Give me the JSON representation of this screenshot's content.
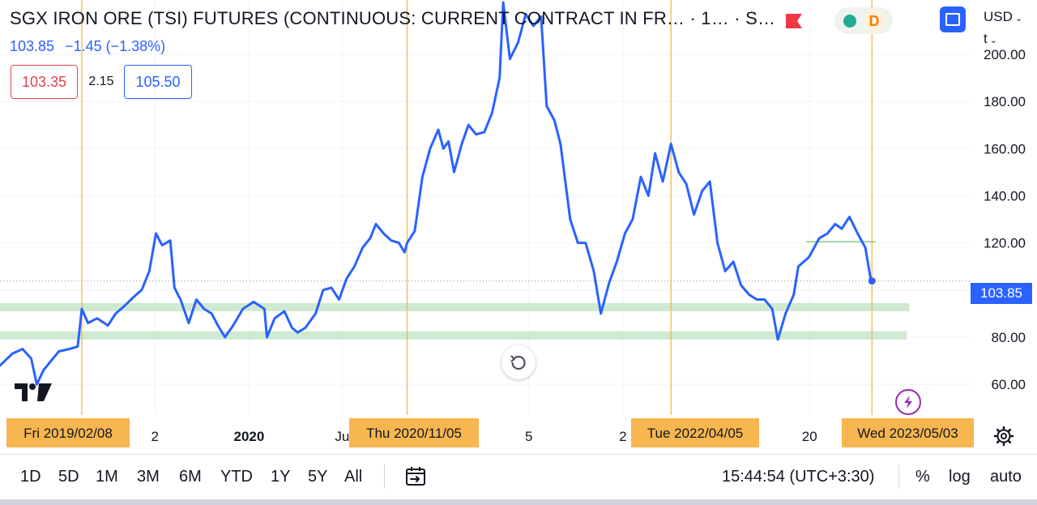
{
  "header": {
    "title": "SGX IRON ORE (TSI) FUTURES (CONTINUOUS: CURRENT CONTRACT IN FR…  · 1…  · S…",
    "last_price": "103.85",
    "change": "−1.45 (−1.38%)",
    "bid": "103.35",
    "spread": "2.15",
    "ask": "105.50",
    "status_letter": "D",
    "currency": "USD",
    "unit": "t"
  },
  "colors": {
    "line": "#2962ff",
    "support_zone": "#c8e6c9",
    "event_line": "#f0b94a",
    "date_chip": "#f7b64f",
    "bid": "#e0454b",
    "ask": "#2962ff",
    "market_open": "#22ab94",
    "delayed": "#f57c00"
  },
  "chart_data": {
    "type": "line",
    "ylim": [
      47,
      223
    ],
    "xlim": [
      "2018-09-01",
      "2023-11-15"
    ],
    "y_ticks": [
      "60.00",
      "80.00",
      "100.00",
      "120.00",
      "140.00",
      "160.00",
      "180.00",
      "200.00"
    ],
    "x_ticks": [
      {
        "label": "2",
        "date": "2019-07-01"
      },
      {
        "label": "2020",
        "date": "2020-01-01"
      },
      {
        "label": "Ju",
        "date": "2020-07-01"
      },
      {
        "label": "5",
        "date": "2021-07-01"
      },
      {
        "label": "2",
        "date": "2022-01-01"
      },
      {
        "label": "20",
        "date": "2023-01-01"
      }
    ],
    "current_price_label": "103.85",
    "current_price": 103.85,
    "event_dates": [
      {
        "label": "Fri 2019/02/08",
        "date": "2019-02-08"
      },
      {
        "label": "Thu 2020/11/05",
        "date": "2020-11-05"
      },
      {
        "label": "Tue 2022/04/05",
        "date": "2022-04-05"
      },
      {
        "label": "Wed 2023/05/03",
        "date": "2023-05-03"
      }
    ],
    "zones": [
      {
        "from": "2018-09-01",
        "to": "2023-07-15",
        "low": 91,
        "high": 94.5
      },
      {
        "from": "2018-09-01",
        "to": "2023-07-10",
        "low": 79,
        "high": 82.5
      }
    ],
    "level_lines": [
      {
        "from": "2022-12-25",
        "to": "2023-05-10",
        "value": 120.5
      }
    ],
    "series": [
      {
        "values": [
          {
            "x": "2018-09-01",
            "y": 68
          },
          {
            "x": "2018-09-25",
            "y": 73
          },
          {
            "x": "2018-10-15",
            "y": 75
          },
          {
            "x": "2018-11-01",
            "y": 71
          },
          {
            "x": "2018-11-12",
            "y": 60
          },
          {
            "x": "2018-11-25",
            "y": 66
          },
          {
            "x": "2018-12-10",
            "y": 70
          },
          {
            "x": "2018-12-25",
            "y": 74
          },
          {
            "x": "2019-01-15",
            "y": 75
          },
          {
            "x": "2019-01-31",
            "y": 76
          },
          {
            "x": "2019-02-08",
            "y": 92
          },
          {
            "x": "2019-02-20",
            "y": 86
          },
          {
            "x": "2019-03-10",
            "y": 88
          },
          {
            "x": "2019-03-31",
            "y": 85
          },
          {
            "x": "2019-04-15",
            "y": 90
          },
          {
            "x": "2019-05-01",
            "y": 93
          },
          {
            "x": "2019-05-20",
            "y": 97
          },
          {
            "x": "2019-06-05",
            "y": 100
          },
          {
            "x": "2019-06-20",
            "y": 108
          },
          {
            "x": "2019-07-03",
            "y": 124
          },
          {
            "x": "2019-07-15",
            "y": 119
          },
          {
            "x": "2019-07-31",
            "y": 121
          },
          {
            "x": "2019-08-08",
            "y": 101
          },
          {
            "x": "2019-08-20",
            "y": 96
          },
          {
            "x": "2019-09-05",
            "y": 86
          },
          {
            "x": "2019-09-20",
            "y": 96
          },
          {
            "x": "2019-10-05",
            "y": 92
          },
          {
            "x": "2019-10-20",
            "y": 90
          },
          {
            "x": "2019-11-01",
            "y": 85
          },
          {
            "x": "2019-11-15",
            "y": 80
          },
          {
            "x": "2019-12-01",
            "y": 85
          },
          {
            "x": "2019-12-20",
            "y": 92
          },
          {
            "x": "2020-01-10",
            "y": 95
          },
          {
            "x": "2020-01-31",
            "y": 92
          },
          {
            "x": "2020-02-05",
            "y": 80
          },
          {
            "x": "2020-02-20",
            "y": 88
          },
          {
            "x": "2020-03-10",
            "y": 91
          },
          {
            "x": "2020-03-25",
            "y": 84
          },
          {
            "x": "2020-04-05",
            "y": 82
          },
          {
            "x": "2020-04-20",
            "y": 84
          },
          {
            "x": "2020-05-10",
            "y": 90
          },
          {
            "x": "2020-05-25",
            "y": 100
          },
          {
            "x": "2020-06-10",
            "y": 101
          },
          {
            "x": "2020-06-25",
            "y": 96
          },
          {
            "x": "2020-07-10",
            "y": 105
          },
          {
            "x": "2020-07-25",
            "y": 110
          },
          {
            "x": "2020-08-10",
            "y": 118
          },
          {
            "x": "2020-08-25",
            "y": 122
          },
          {
            "x": "2020-09-05",
            "y": 128
          },
          {
            "x": "2020-09-20",
            "y": 124
          },
          {
            "x": "2020-10-05",
            "y": 121
          },
          {
            "x": "2020-10-20",
            "y": 120
          },
          {
            "x": "2020-10-31",
            "y": 116
          },
          {
            "x": "2020-11-05",
            "y": 120
          },
          {
            "x": "2020-11-20",
            "y": 125
          },
          {
            "x": "2020-12-05",
            "y": 148
          },
          {
            "x": "2020-12-20",
            "y": 160
          },
          {
            "x": "2021-01-05",
            "y": 168
          },
          {
            "x": "2021-01-15",
            "y": 160
          },
          {
            "x": "2021-01-25",
            "y": 163
          },
          {
            "x": "2021-02-05",
            "y": 150
          },
          {
            "x": "2021-02-20",
            "y": 162
          },
          {
            "x": "2021-03-05",
            "y": 170
          },
          {
            "x": "2021-03-20",
            "y": 166
          },
          {
            "x": "2021-04-05",
            "y": 167
          },
          {
            "x": "2021-04-20",
            "y": 175
          },
          {
            "x": "2021-05-05",
            "y": 190
          },
          {
            "x": "2021-05-12",
            "y": 222
          },
          {
            "x": "2021-05-25",
            "y": 198
          },
          {
            "x": "2021-06-10",
            "y": 205
          },
          {
            "x": "2021-06-25",
            "y": 217
          },
          {
            "x": "2021-07-10",
            "y": 212
          },
          {
            "x": "2021-07-25",
            "y": 216
          },
          {
            "x": "2021-08-05",
            "y": 178
          },
          {
            "x": "2021-08-20",
            "y": 172
          },
          {
            "x": "2021-09-01",
            "y": 162
          },
          {
            "x": "2021-09-20",
            "y": 130
          },
          {
            "x": "2021-10-05",
            "y": 120
          },
          {
            "x": "2021-10-20",
            "y": 120
          },
          {
            "x": "2021-11-05",
            "y": 108
          },
          {
            "x": "2021-11-19",
            "y": 90
          },
          {
            "x": "2021-12-05",
            "y": 103
          },
          {
            "x": "2021-12-20",
            "y": 112
          },
          {
            "x": "2022-01-05",
            "y": 124
          },
          {
            "x": "2022-01-20",
            "y": 130
          },
          {
            "x": "2022-02-05",
            "y": 148
          },
          {
            "x": "2022-02-20",
            "y": 140
          },
          {
            "x": "2022-03-05",
            "y": 158
          },
          {
            "x": "2022-03-20",
            "y": 146
          },
          {
            "x": "2022-04-05",
            "y": 162
          },
          {
            "x": "2022-04-20",
            "y": 150
          },
          {
            "x": "2022-05-05",
            "y": 145
          },
          {
            "x": "2022-05-20",
            "y": 132
          },
          {
            "x": "2022-06-05",
            "y": 142
          },
          {
            "x": "2022-06-20",
            "y": 146
          },
          {
            "x": "2022-07-05",
            "y": 120
          },
          {
            "x": "2022-07-20",
            "y": 108
          },
          {
            "x": "2022-08-05",
            "y": 112
          },
          {
            "x": "2022-08-20",
            "y": 102
          },
          {
            "x": "2022-09-05",
            "y": 98
          },
          {
            "x": "2022-09-20",
            "y": 96
          },
          {
            "x": "2022-10-05",
            "y": 96
          },
          {
            "x": "2022-10-20",
            "y": 92
          },
          {
            "x": "2022-10-31",
            "y": 79
          },
          {
            "x": "2022-11-15",
            "y": 90
          },
          {
            "x": "2022-12-01",
            "y": 98
          },
          {
            "x": "2022-12-10",
            "y": 110
          },
          {
            "x": "2022-12-31",
            "y": 114
          },
          {
            "x": "2023-01-20",
            "y": 122
          },
          {
            "x": "2023-02-05",
            "y": 124
          },
          {
            "x": "2023-02-20",
            "y": 128
          },
          {
            "x": "2023-03-05",
            "y": 126
          },
          {
            "x": "2023-03-20",
            "y": 131
          },
          {
            "x": "2023-04-05",
            "y": 124
          },
          {
            "x": "2023-04-20",
            "y": 118
          },
          {
            "x": "2023-05-01",
            "y": 104
          },
          {
            "x": "2023-05-03",
            "y": 103.85
          }
        ]
      }
    ]
  },
  "toolbar": {
    "ranges": [
      "1D",
      "5D",
      "1M",
      "3M",
      "6M",
      "YTD",
      "1Y",
      "5Y",
      "All"
    ],
    "time": "15:44:54 (UTC+3:30)",
    "percent_label": "%",
    "log_label": "log",
    "auto_label": "auto"
  }
}
